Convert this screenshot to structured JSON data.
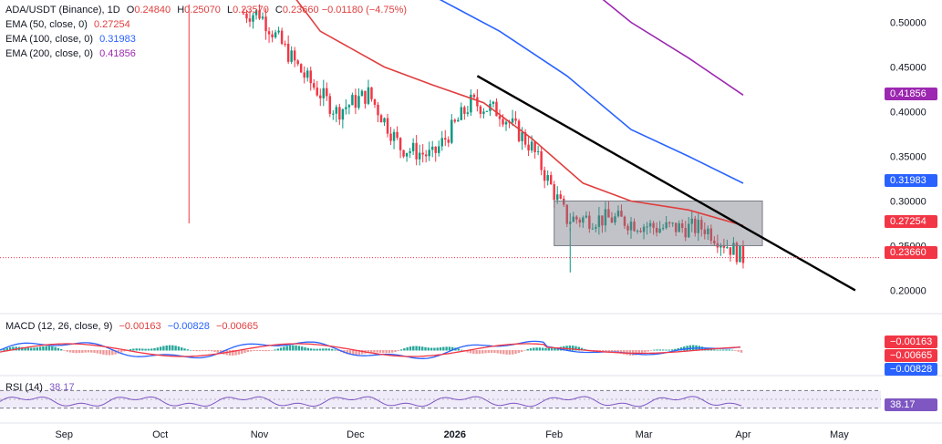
{
  "header": {
    "symbol": "ADA/USDT (Binance), 1D",
    "o_label": "O",
    "o": "0.24840",
    "h_label": "H",
    "h": "0.25070",
    "l_label": "L",
    "l": "0.23570",
    "c_label": "C",
    "c": "0.23660",
    "chg": "−0.01180 (−4.75%)"
  },
  "ema_legend": [
    {
      "label": "EMA (50, close, 0)",
      "value": "0.27254",
      "color": "#e03e3e"
    },
    {
      "label": "EMA (100, close, 0)",
      "value": "0.31983",
      "color": "#2962ff"
    },
    {
      "label": "EMA (200, close, 0)",
      "value": "0.41856",
      "color": "#9c27b0"
    }
  ],
  "macd_legend": {
    "label": "MACD (12, 26, close, 9)",
    "v1": "−0.00163",
    "v2": "−0.00828",
    "v3": "−0.00665"
  },
  "rsi_legend": {
    "label": "RSI (14)",
    "value": "38.17"
  },
  "price_tags": [
    {
      "text": "0.41856",
      "color": "#9c27b0",
      "price": 0.41856
    },
    {
      "text": "0.31983",
      "color": "#2962ff",
      "price": 0.31983
    },
    {
      "text": "0.27254",
      "color": "#e03e3e",
      "price": 0.27254
    },
    {
      "text": "0.23660",
      "color": "#e03e3e",
      "price": 0.2366
    }
  ],
  "macd_tags": [
    {
      "text": "−0.00163",
      "color": "#f23645"
    },
    {
      "text": "−0.00665",
      "color": "#f23645"
    },
    {
      "text": "−0.00828",
      "color": "#2962ff"
    }
  ],
  "rsi_tag": {
    "text": "38.17",
    "color": "#7e57c2"
  },
  "chart_data": {
    "type": "candlestick",
    "x_ticks": [
      "Sep",
      "Oct",
      "Nov",
      "Dec",
      "2026",
      "Feb",
      "Mar",
      "Apr",
      "May"
    ],
    "y_ticks": [
      "0.50000",
      "0.45000",
      "0.40000",
      "0.35000",
      "0.30000",
      "0.25000",
      "0.20000"
    ],
    "y_tick_values": [
      0.5,
      0.45,
      0.4,
      0.35,
      0.3,
      0.25,
      0.2
    ],
    "ylim": [
      0.178,
      0.525
    ],
    "x_start": "2025-08-12",
    "x_end": "2026-05-14",
    "last_candle": "2026-04-01",
    "candles_approx": [
      {
        "date": "2025-10-10",
        "low": 0.275
      },
      {
        "date": "2025-11-01",
        "close": 0.51
      },
      {
        "date": "2025-11-15",
        "close": 0.44
      },
      {
        "date": "2025-11-25",
        "close": 0.4
      },
      {
        "date": "2025-12-05",
        "close": 0.42
      },
      {
        "date": "2025-12-15",
        "close": 0.36
      },
      {
        "date": "2025-12-25",
        "close": 0.35
      },
      {
        "date": "2026-01-06",
        "close": 0.41
      },
      {
        "date": "2026-01-15",
        "close": 0.4
      },
      {
        "date": "2026-01-25",
        "close": 0.36
      },
      {
        "date": "2026-02-05",
        "close": 0.28,
        "low": 0.22
      },
      {
        "date": "2026-02-20",
        "close": 0.28
      },
      {
        "date": "2026-03-05",
        "close": 0.27
      },
      {
        "date": "2026-03-20",
        "close": 0.27
      },
      {
        "date": "2026-04-01",
        "close": 0.2366
      }
    ],
    "ema_series": [
      {
        "name": "EMA 50",
        "color": "#e03e3e",
        "points": [
          [
            "2025-11-01",
            0.58
          ],
          [
            "2025-11-20",
            0.49
          ],
          [
            "2025-12-10",
            0.45
          ],
          [
            "2025-12-25",
            0.43
          ],
          [
            "2026-01-10",
            0.41
          ],
          [
            "2026-01-25",
            0.37
          ],
          [
            "2026-02-10",
            0.32
          ],
          [
            "2026-02-25",
            0.3
          ],
          [
            "2026-03-15",
            0.29
          ],
          [
            "2026-04-01",
            0.27254
          ]
        ]
      },
      {
        "name": "EMA 100",
        "color": "#2962ff",
        "points": [
          [
            "2025-12-01",
            0.58
          ],
          [
            "2025-12-25",
            0.53
          ],
          [
            "2026-01-15",
            0.49
          ],
          [
            "2026-02-05",
            0.44
          ],
          [
            "2026-02-25",
            0.38
          ],
          [
            "2026-03-15",
            0.35
          ],
          [
            "2026-04-01",
            0.31983
          ]
        ]
      },
      {
        "name": "EMA 200",
        "color": "#9c27b0",
        "points": [
          [
            "2026-02-01",
            0.57
          ],
          [
            "2026-02-25",
            0.5
          ],
          [
            "2026-03-15",
            0.46
          ],
          [
            "2026-04-01",
            0.41856
          ]
        ]
      }
    ],
    "trendline": [
      [
        "2026-01-08",
        0.44
      ],
      [
        "2026-05-06",
        0.2
      ]
    ],
    "range_box": {
      "from": "2026-02-01",
      "to": "2026-04-07",
      "top": 0.3,
      "bottom": 0.25
    },
    "rsi": {
      "upper": 70,
      "lower": 30,
      "current": 38.17
    }
  }
}
